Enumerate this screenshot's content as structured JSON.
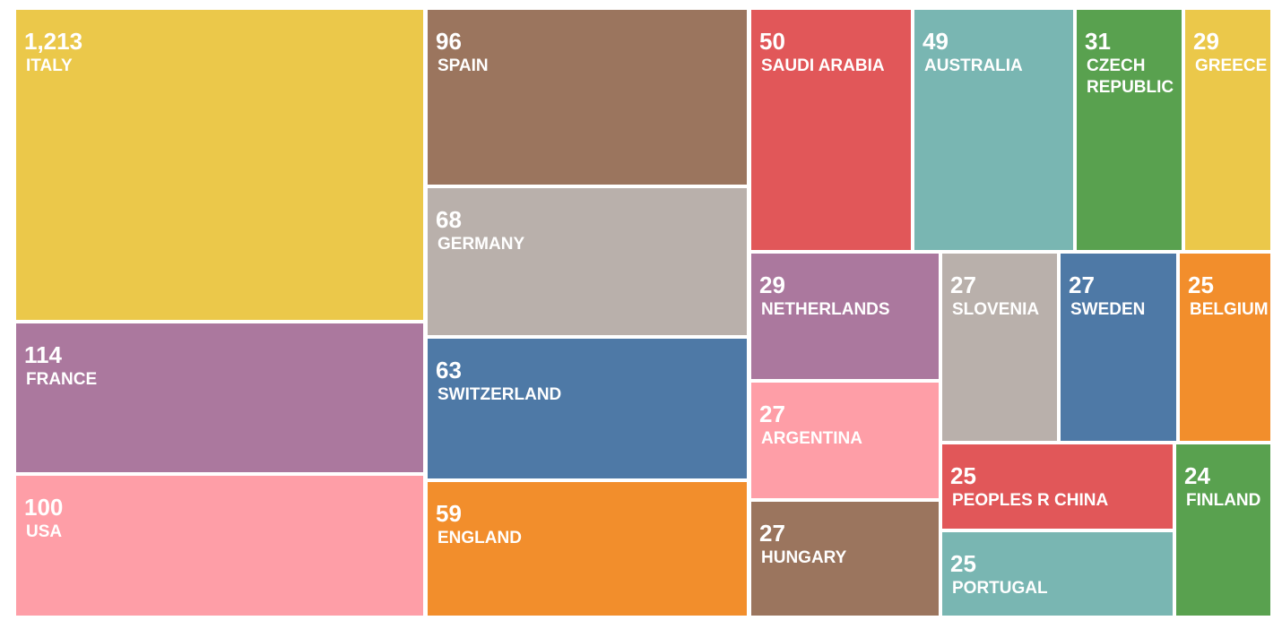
{
  "chart_data": {
    "type": "treemap",
    "title": "",
    "items": [
      {
        "label": "ITALY",
        "value": 1213,
        "display_value": "1,213",
        "color": "#ebc84a"
      },
      {
        "label": "FRANCE",
        "value": 114,
        "display_value": "114",
        "color": "#ab789e"
      },
      {
        "label": "USA",
        "value": 100,
        "display_value": "100",
        "color": "#fe9ea7"
      },
      {
        "label": "SPAIN",
        "value": 96,
        "display_value": "96",
        "color": "#9b755e"
      },
      {
        "label": "GERMANY",
        "value": 68,
        "display_value": "68",
        "color": "#b9b0ab"
      },
      {
        "label": "SWITZERLAND",
        "value": 63,
        "display_value": "63",
        "color": "#4e79a6"
      },
      {
        "label": "ENGLAND",
        "value": 59,
        "display_value": "59",
        "color": "#f28e2c"
      },
      {
        "label": "SAUDI ARABIA",
        "value": 50,
        "display_value": "50",
        "color": "#e15759"
      },
      {
        "label": "AUSTRALIA",
        "value": 49,
        "display_value": "49",
        "color": "#79b6b2"
      },
      {
        "label": "CZECH\nREPUBLIC",
        "value": 31,
        "display_value": "31",
        "color": "#59a14f"
      },
      {
        "label": "GREECE",
        "value": 29,
        "display_value": "29",
        "color": "#ebc84a"
      },
      {
        "label": "NETHERLANDS",
        "value": 29,
        "display_value": "29",
        "color": "#ab789e"
      },
      {
        "label": "SLOVENIA",
        "value": 27,
        "display_value": "27",
        "color": "#b9b0ab"
      },
      {
        "label": "SWEDEN",
        "value": 27,
        "display_value": "27",
        "color": "#4e79a6"
      },
      {
        "label": "BELGIUM",
        "value": 25,
        "display_value": "25",
        "color": "#f28e2c"
      },
      {
        "label": "ARGENTINA",
        "value": 27,
        "display_value": "27",
        "color": "#fe9ea7"
      },
      {
        "label": "HUNGARY",
        "value": 27,
        "display_value": "27",
        "color": "#9b755e"
      },
      {
        "label": "PEOPLES R CHINA",
        "value": 25,
        "display_value": "25",
        "color": "#e15759"
      },
      {
        "label": "PORTUGAL",
        "value": 25,
        "display_value": "25",
        "color": "#79b6b2"
      },
      {
        "label": "FINLAND",
        "value": 24,
        "display_value": "24",
        "color": "#59a14f"
      }
    ]
  }
}
